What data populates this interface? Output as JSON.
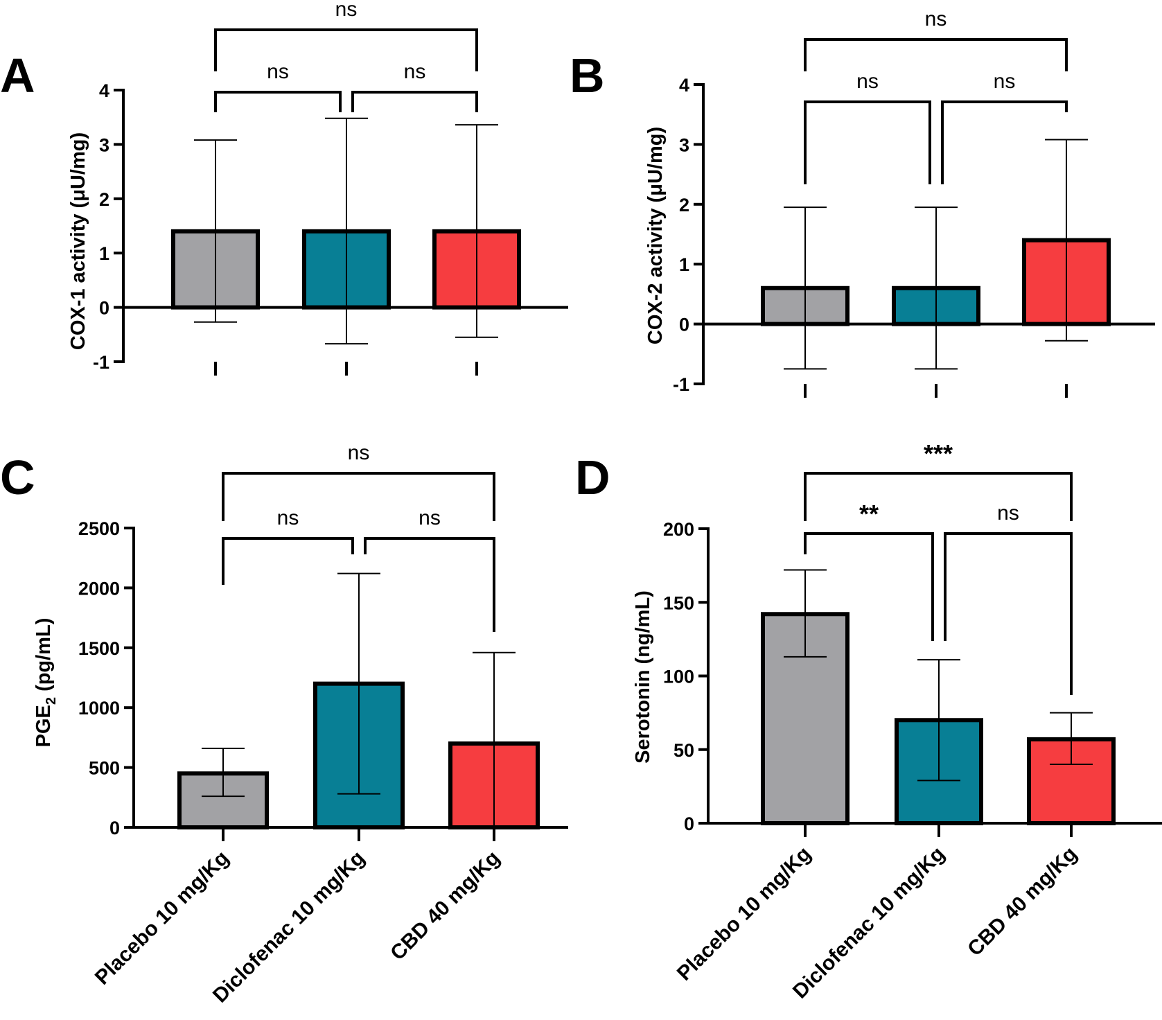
{
  "categories": [
    "Placebo 10 mg/Kg",
    "Diclofenac 10 mg/Kg",
    "CBD 40 mg/Kg"
  ],
  "colors": {
    "placebo": "#a2a2a5",
    "diclofenac": "#087f95",
    "cbd": "#f63d40",
    "axis": "#000000"
  },
  "chart_data": [
    {
      "panel": "A",
      "type": "bar",
      "categories": [
        "Placebo 10 mg/Kg",
        "Diclofenac 10 mg/Kg",
        "CBD 40 mg/Kg"
      ],
      "values": [
        1.4,
        1.4,
        1.4
      ],
      "error_low": [
        -0.27,
        -0.67,
        -0.55
      ],
      "error_high": [
        3.08,
        3.48,
        3.36
      ],
      "ylabel": "COX-1 activity (μU/mg)",
      "ylim": [
        -1,
        4
      ],
      "yticks": [
        "-1",
        "0",
        "1",
        "2",
        "3",
        "4"
      ],
      "show_category_labels": false,
      "significance": [
        {
          "from": 0,
          "to": 1,
          "label": "ns"
        },
        {
          "from": 1,
          "to": 2,
          "label": "ns"
        },
        {
          "from": 0,
          "to": 2,
          "label": "ns"
        }
      ]
    },
    {
      "panel": "B",
      "type": "bar",
      "categories": [
        "Placebo 10 mg/Kg",
        "Diclofenac 10 mg/Kg",
        "CBD 40 mg/Kg"
      ],
      "values": [
        0.6,
        0.6,
        1.4
      ],
      "error_low": [
        -0.75,
        -0.75,
        -0.28
      ],
      "error_high": [
        1.95,
        1.95,
        3.08
      ],
      "ylabel": "COX-2 activity (μU/mg)",
      "ylim": [
        -1,
        4
      ],
      "yticks": [
        "-1",
        "0",
        "1",
        "2",
        "3",
        "4"
      ],
      "show_category_labels": false,
      "significance": [
        {
          "from": 0,
          "to": 1,
          "label": "ns"
        },
        {
          "from": 1,
          "to": 2,
          "label": "ns"
        },
        {
          "from": 0,
          "to": 2,
          "label": "ns"
        }
      ]
    },
    {
      "panel": "C",
      "type": "bar",
      "categories": [
        "Placebo 10 mg/Kg",
        "Diclofenac 10 mg/Kg",
        "CBD 40 mg/Kg"
      ],
      "values": [
        450,
        1200,
        700
      ],
      "error_low": [
        260,
        280,
        0
      ],
      "error_high": [
        660,
        2120,
        1460
      ],
      "ylabel_main": "PGE",
      "ylabel_sub": "2",
      "ylabel_rest": " (pg/mL)",
      "ylim": [
        0,
        2500
      ],
      "yticks": [
        "0",
        "500",
        "1000",
        "1500",
        "2000",
        "2500"
      ],
      "show_category_labels": true,
      "significance": [
        {
          "from": 0,
          "to": 1,
          "label": "ns"
        },
        {
          "from": 1,
          "to": 2,
          "label": "ns"
        },
        {
          "from": 0,
          "to": 2,
          "label": "ns"
        }
      ]
    },
    {
      "panel": "D",
      "type": "bar",
      "categories": [
        "Placebo 10 mg/Kg",
        "Diclofenac 10 mg/Kg",
        "CBD 40 mg/Kg"
      ],
      "values": [
        142,
        70,
        57
      ],
      "error_low": [
        113,
        29,
        40
      ],
      "error_high": [
        172,
        111,
        75
      ],
      "ylabel": "Serotonin (ng/mL)",
      "ylim": [
        0,
        200
      ],
      "yticks": [
        "0",
        "50",
        "100",
        "150",
        "200"
      ],
      "show_category_labels": true,
      "significance": [
        {
          "from": 0,
          "to": 1,
          "label": "**"
        },
        {
          "from": 1,
          "to": 2,
          "label": "ns"
        },
        {
          "from": 0,
          "to": 2,
          "label": "***"
        }
      ]
    }
  ]
}
